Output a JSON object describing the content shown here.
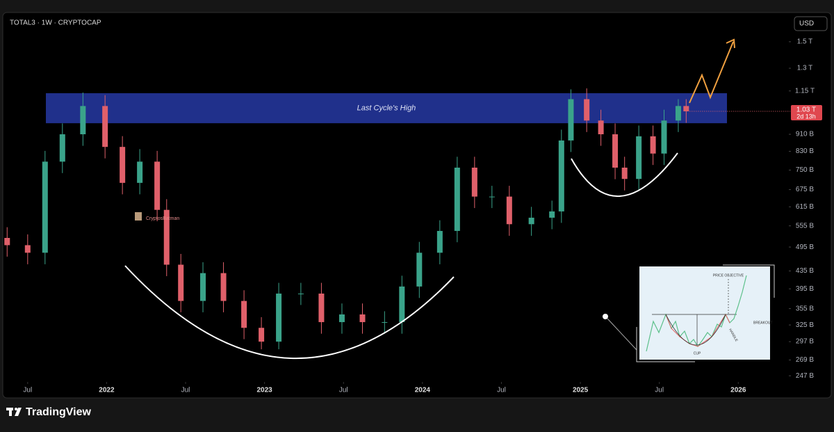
{
  "header": {
    "symbol": "TOTAL3 · 1W · CRYPTOCAP",
    "currency": "USD"
  },
  "chart_data": {
    "type": "candlestick",
    "x": [
      2021.37,
      2021.5,
      2021.61,
      2021.72,
      2021.85,
      2021.99,
      2022.1,
      2022.21,
      2022.32,
      2022.38,
      2022.47,
      2022.61,
      2022.74,
      2022.87,
      2022.98,
      2023.09,
      2023.23,
      2023.36,
      2023.49,
      2023.62,
      2023.76,
      2023.87,
      2023.98,
      2024.11,
      2024.22,
      2024.33,
      2024.44,
      2024.55,
      2024.69,
      2024.82,
      2024.88,
      2024.94,
      2025.04,
      2025.13,
      2025.22,
      2025.28,
      2025.37,
      2025.46,
      2025.53,
      2025.62,
      2025.67
    ],
    "open": [
      520,
      500,
      480,
      785,
      910,
      1060,
      850,
      700,
      785,
      605,
      450,
      370,
      430,
      370,
      320,
      297,
      385,
      385,
      330,
      344,
      330,
      330,
      400,
      480,
      540,
      760,
      650,
      650,
      560,
      580,
      600,
      880,
      1100,
      980,
      910,
      760,
      715,
      900,
      820,
      980,
      1060
    ],
    "high": [
      551,
      530,
      832,
      965,
      1140,
      1124,
      901,
      840,
      832,
      641,
      477,
      456,
      456,
      392,
      339,
      408,
      408,
      408,
      365,
      365,
      350,
      424,
      509,
      572,
      806,
      806,
      689,
      689,
      615,
      636,
      933,
      1160,
      1166,
      1039,
      965,
      806,
      954,
      954,
      1039,
      1100,
      1100
    ],
    "low": [
      470,
      451,
      451,
      738,
      855,
      799,
      658,
      658,
      569,
      423,
      348,
      348,
      348,
      301,
      285,
      285,
      362,
      310,
      310,
      310,
      310,
      310,
      376,
      451,
      508,
      611,
      611,
      526,
      526,
      545,
      564,
      827,
      921,
      855,
      714,
      672,
      672,
      771,
      771,
      921,
      968
    ],
    "close": [
      500,
      480,
      785,
      910,
      1060,
      850,
      700,
      785,
      605,
      450,
      370,
      430,
      370,
      320,
      297,
      385,
      385,
      330,
      344,
      330,
      330,
      400,
      480,
      540,
      760,
      650,
      650,
      560,
      580,
      600,
      880,
      1100,
      980,
      910,
      760,
      715,
      900,
      820,
      980,
      1060,
      1030
    ],
    "up_color": "#3aa38a",
    "down_color": "#e0606a",
    "log_scale": true,
    "grid": false,
    "ylim": [
      220,
      1730
    ],
    "yticks": [
      {
        "value": 247,
        "label": "247 B"
      },
      {
        "value": 269,
        "label": "269 B"
      },
      {
        "value": 297,
        "label": "297 B"
      },
      {
        "value": 325,
        "label": "325 B"
      },
      {
        "value": 355,
        "label": "355 B"
      },
      {
        "value": 395,
        "label": "395 B"
      },
      {
        "value": 435,
        "label": "435 B"
      },
      {
        "value": 495,
        "label": "495 B"
      },
      {
        "value": 555,
        "label": "555 B"
      },
      {
        "value": 615,
        "label": "615 B"
      },
      {
        "value": 675,
        "label": "675 B"
      },
      {
        "value": 750,
        "label": "750 B"
      },
      {
        "value": 830,
        "label": "830 B"
      },
      {
        "value": 910,
        "label": "910 B"
      },
      {
        "value": 1150,
        "label": "1.15 T"
      },
      {
        "value": 1300,
        "label": "1.3 T"
      },
      {
        "value": 1500,
        "label": "1.5 T"
      }
    ],
    "xlim": [
      2021.36,
      2026.32
    ],
    "xticks": [
      {
        "value": 2021.5,
        "label": "Jul"
      },
      2022,
      {
        "value": 2022.5,
        "label": "Jul"
      },
      2023,
      {
        "value": 2023.5,
        "label": "Jul"
      },
      2024,
      {
        "value": 2024.5,
        "label": "Jul"
      },
      2025,
      {
        "value": 2025.5,
        "label": "Jul"
      },
      2026
    ],
    "zone": {
      "label": "Last Cycle's High",
      "low": 966,
      "high": 1136,
      "color": "#23359a"
    },
    "last_price": {
      "value": 1030,
      "label": "1.03 T",
      "countdown": "2d 13h"
    },
    "watermark": "CryptosBatman"
  },
  "inset": {
    "labels": [
      "PRICE OBJECTIVE",
      "BREAKOUT",
      "HANDLE",
      "CUP"
    ]
  },
  "footer": {
    "brand": "TradingView"
  }
}
